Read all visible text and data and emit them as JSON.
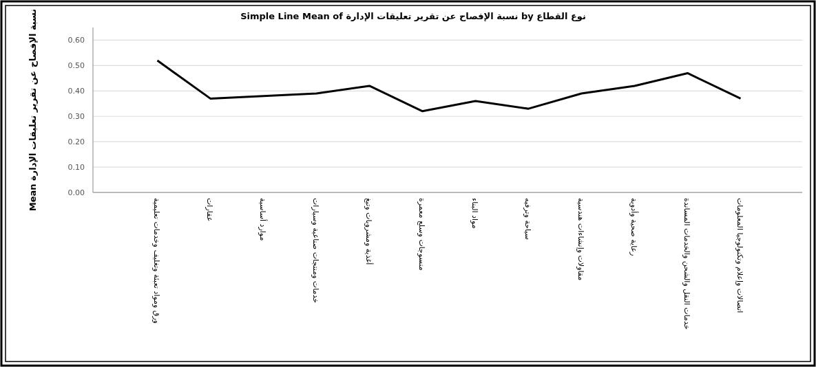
{
  "chart_data": {
    "type": "line",
    "title": "Simple Line Mean of نسبة الإفصاح عن تقرير تعليقات الإدارة by نوع القطاع",
    "ylabel": "Mean نسبة الإفصاح عن تقرير تعليقات الإدارة",
    "categories": [
      "ورق ومواد تعبئة وتغليف وخدمات تعليمية",
      "عقارات",
      "موارد أساسية",
      "خدمات ومنتجات صناعية وسيارات",
      "أغذية ومشروبات وتبغ",
      "منسوجات وسلع معمرة",
      "مواد البناء",
      "سياحة وترفيه",
      "مقاولات وإنشاءات هندسية",
      "رعاية صحية وأدوية",
      "خدمات النقل والشحن والخدمات المساندة",
      "اتصالات وإعلام وتكنولوجيا المعلومات"
    ],
    "series": [
      {
        "color": "#000000",
        "values": [
          0.52,
          0.37,
          0.38,
          0.39,
          0.42,
          0.32,
          0.36,
          0.33,
          0.39,
          0.42,
          0.47,
          0.37
        ]
      }
    ],
    "ylim": [
      0,
      0.65
    ],
    "yticks": [
      {
        "value": 0,
        "label": "0.00"
      },
      {
        "value": 0.1,
        "label": "0.10"
      },
      {
        "value": 0.2,
        "label": "0.20"
      },
      {
        "value": 0.3,
        "label": "0.30"
      },
      {
        "value": 0.4,
        "label": "0.40"
      },
      {
        "value": 0.5,
        "label": "0.50"
      },
      {
        "value": 0.6,
        "label": "0.60"
      }
    ],
    "grid": "y"
  }
}
